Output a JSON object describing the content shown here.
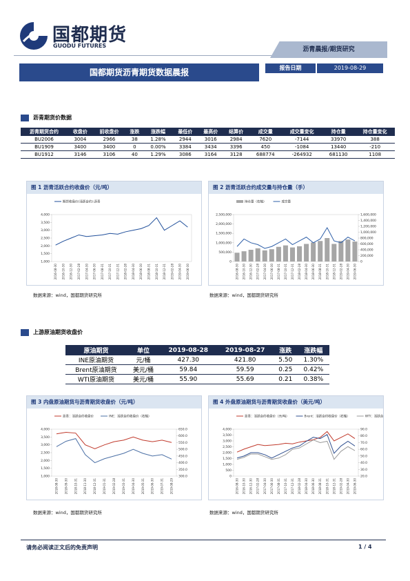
{
  "header": {
    "logo": "国都期货",
    "logo_en": "GUODU FUTURES",
    "tag": "沥青晨报/期货研究",
    "title": "国都期货沥青期货数据晨报",
    "date_label": "报告日期",
    "date": "2019-08-29"
  },
  "tables": [
    {
      "section": "沥青期货价数据",
      "headers": [
        "沥青期货合约",
        "收盘价",
        "前收盘价",
        "涨跌",
        "涨跌幅",
        "最低价",
        "最高价",
        "结算价",
        "成交量",
        "成交量变化",
        "持仓量",
        "持仓量变化"
      ],
      "rows": [
        [
          "BU2006",
          "3004",
          "2966",
          "38",
          "1.28%",
          "2944",
          "3016",
          "2984",
          "7620",
          "-7144",
          "33970",
          "388"
        ],
        [
          "BU1909",
          "3400",
          "3400",
          "0",
          "0.00%",
          "3384",
          "3434",
          "3396",
          "450",
          "-1084",
          "13440",
          "-210"
        ],
        [
          "BU1912",
          "3146",
          "3106",
          "40",
          "1.29%",
          "3086",
          "3164",
          "3128",
          "688774",
          "-264932",
          "681130",
          "1108"
        ]
      ]
    },
    {
      "section": "上游原油期货收盘价",
      "headers": [
        "原油期货",
        "单位",
        "2019-08-28",
        "2019-08-27",
        "涨跌",
        "涨跌幅"
      ],
      "rows": [
        [
          "INE原油期货",
          "元/桶",
          "427.30",
          "421.80",
          "5.50",
          "1.30%"
        ],
        [
          "Brent原油期货",
          "美元/桶",
          "59.84",
          "59.59",
          "0.25",
          "0.42%"
        ],
        [
          "WTI原油期货",
          "美元/桶",
          "55.90",
          "55.69",
          "0.21",
          "0.38%"
        ]
      ]
    }
  ],
  "chart_data": [
    {
      "type": "line",
      "title": "图 1  沥青活跃合约收盘价（元/吨）",
      "source": "数据来源：wind，国都期货研究所",
      "categories": [
        "2016-08-30",
        "2016-10-30",
        "2016-12-30",
        "2017-02-28",
        "2017-04-30",
        "2017-06-30",
        "2017-08-31",
        "2017-10-31",
        "2017-12-31",
        "2018-02-28",
        "2018-04-30",
        "2018-06-30",
        "2018-08-31",
        "2018-10-31",
        "2018-12-31",
        "2019-02-28",
        "2019-04-30",
        "2019-06-30"
      ],
      "series": [
        {
          "name": "期货收盘价(活跃合约):沥青",
          "color": "#1f4e9a",
          "values": [
            2050,
            2300,
            2500,
            2700,
            2600,
            2650,
            2700,
            2800,
            2750,
            2900,
            3000,
            3100,
            3300,
            3800,
            3000,
            3300,
            3600,
            3200
          ]
        }
      ],
      "ylim": [
        1000,
        4000
      ],
      "yticks": [
        {
          "value": 1000,
          "label": "1,000"
        },
        {
          "value": 1500,
          "label": "1,500"
        },
        {
          "value": 2000,
          "label": "2,000"
        },
        {
          "value": 2500,
          "label": "2,500"
        },
        {
          "value": 3000,
          "label": "3,000"
        },
        {
          "value": 3500,
          "label": "3,500"
        },
        {
          "value": 4000,
          "label": "4,000"
        }
      ]
    },
    {
      "type": "combo",
      "title": "图 2  沥青活跃合约成交量与持仓量（手）",
      "source": "数据来源：wind，国都期货研究所",
      "categories": [
        "2016-08-30",
        "2016-10-30",
        "2016-12-30",
        "2017-02-28",
        "2017-04-30",
        "2017-06-30",
        "2017-08-31",
        "2017-10-31",
        "2017-12-31",
        "2018-02-28",
        "2018-04-30",
        "2018-06-30",
        "2018-08-31",
        "2018-10-31",
        "2018-12-31",
        "2019-02-28",
        "2019-04-30",
        "2019-06-30"
      ],
      "series": [
        {
          "name": "持仓量（右轴）",
          "type": "bar",
          "axis": "y2",
          "color": "#a6a6a6",
          "values": [
            300000,
            350000,
            400000,
            450000,
            380000,
            420000,
            500000,
            550000,
            480000,
            520000,
            600000,
            650000,
            700000,
            800000,
            600000,
            700000,
            750000,
            680000
          ]
        },
        {
          "name": "成交量",
          "type": "line",
          "color": "#2e5fa8",
          "values": [
            800000,
            1200000,
            1000000,
            900000,
            700000,
            800000,
            1000000,
            1200000,
            900000,
            1100000,
            1300000,
            1000000,
            1200000,
            1800000,
            1100000,
            1000000,
            1300000,
            1100000
          ]
        }
      ],
      "ylim": [
        0,
        2500000
      ],
      "yticks": [
        0,
        {
          "value": 500000,
          "label": "500,000"
        },
        {
          "value": 1000000,
          "label": "1,000,000"
        },
        {
          "value": 1500000,
          "label": "1,500,000"
        },
        {
          "value": 2000000,
          "label": "2,000,000"
        },
        {
          "value": 2500000,
          "label": "2,500,000"
        }
      ],
      "y2lim": [
        0,
        1600000
      ],
      "y2ticks": [
        0,
        {
          "value": 200000,
          "label": "200,000"
        },
        {
          "value": 400000,
          "label": "400,000"
        },
        {
          "value": 600000,
          "label": "600,000"
        },
        {
          "value": 800000,
          "label": "800,000"
        },
        {
          "value": 1000000,
          "label": "1,000,000"
        },
        {
          "value": 1200000,
          "label": "1,200,000"
        },
        {
          "value": 1400000,
          "label": "1,400,000"
        },
        {
          "value": 1600000,
          "label": "1,600,000"
        }
      ]
    },
    {
      "type": "line",
      "title": "图 3  内盘原油期货与沥青期货收盘价（元/吨）",
      "source": "数据来源：wind，国都期货研究所",
      "categories": [
        "2018-08-30",
        "2018-09-30",
        "2018-10-31",
        "2018-11-30",
        "2018-12-31",
        "2019-01-31",
        "2019-02-28",
        "2019-03-31",
        "2019-04-30",
        "2019-05-31",
        "2019-06-30",
        "2019-07-31",
        "2019-08-29"
      ],
      "series": [
        {
          "name": "沥青：活跃合约收盘价",
          "color": "#c0392b",
          "values": [
            3700,
            3800,
            3750,
            3000,
            2750,
            3000,
            3200,
            3300,
            3500,
            3300,
            3200,
            3300,
            3150
          ]
        },
        {
          "name": "INE：活跃合约收盘价（右轴）",
          "axis": "y2",
          "color": "#4a6fa5",
          "values": [
            520,
            560,
            580,
            460,
            400,
            430,
            450,
            470,
            500,
            470,
            450,
            460,
            427.3
          ]
        }
      ],
      "ylim": [
        1000,
        4000
      ],
      "yticks": [
        {
          "value": 1000,
          "label": "1,000"
        },
        {
          "value": 1500,
          "label": "1,500"
        },
        {
          "value": 2000,
          "label": "2,000"
        },
        {
          "value": 2500,
          "label": "2,500"
        },
        {
          "value": 3000,
          "label": "3,000"
        },
        {
          "value": 3500,
          "label": "3,500"
        },
        {
          "value": 4000,
          "label": "4,000"
        }
      ],
      "y2lim": [
        300,
        650
      ],
      "y2ticks": [
        {
          "value": 300,
          "label": "300.0"
        },
        {
          "value": 350,
          "label": "350.0"
        },
        {
          "value": 400,
          "label": "400.0"
        },
        {
          "value": 450,
          "label": "450.0"
        },
        {
          "value": 500,
          "label": "500.0"
        },
        {
          "value": 550,
          "label": "550.0"
        },
        {
          "value": 600,
          "label": "600.0"
        },
        {
          "value": 650,
          "label": "650.0"
        }
      ]
    },
    {
      "type": "line",
      "title": "图 4  外盘原油期货与沥青期货收盘价（美元/吨）",
      "source": "数据来源：wind，国都期货研究所",
      "categories": [
        "2016-08-30",
        "2016-10-30",
        "2016-12-30",
        "2017-02-28",
        "2017-04-30",
        "2017-06-30",
        "2017-08-31",
        "2017-10-31",
        "2017-12-31",
        "2018-02-28",
        "2018-04-30",
        "2018-06-30",
        "2018-08-31",
        "2018-10-31",
        "2018-12-31",
        "2019-02-28",
        "2019-04-30",
        "2019-06-30"
      ],
      "series": [
        {
          "name": "沥青：活跃合约收盘价（元/吨）",
          "color": "#c0392b",
          "values": [
            2050,
            2300,
            2500,
            2700,
            2600,
            2650,
            2700,
            2800,
            2750,
            2900,
            3000,
            3100,
            3300,
            3800,
            3000,
            3300,
            3600,
            3200
          ]
        },
        {
          "name": "Brent：活跃合约收盘价（右轴）",
          "axis": "y2",
          "color": "#2f4f8f",
          "values": [
            47,
            50,
            55,
            55,
            52,
            47,
            52,
            57,
            62,
            65,
            72,
            78,
            76,
            82,
            54,
            65,
            72,
            65
          ]
        },
        {
          "name": "WTI：活跃合约收盘价（右轴）",
          "axis": "y2",
          "color": "#999999",
          "values": [
            45,
            48,
            53,
            53,
            49,
            45,
            47,
            52,
            60,
            62,
            68,
            74,
            70,
            72,
            45,
            57,
            64,
            58
          ]
        }
      ],
      "ylim": [
        0,
        4000
      ],
      "yticks": [
        0,
        {
          "value": 500,
          "label": "500"
        },
        {
          "value": 1000,
          "label": "1,000"
        },
        {
          "value": 1500,
          "label": "1,500"
        },
        {
          "value": 2000,
          "label": "2,000"
        },
        {
          "value": 2500,
          "label": "2,500"
        },
        {
          "value": 3000,
          "label": "3,000"
        },
        {
          "value": 3500,
          "label": "3,500"
        },
        {
          "value": 4000,
          "label": "4,000"
        }
      ],
      "y2lim": [
        20,
        90
      ],
      "y2ticks": [
        {
          "value": 20,
          "label": "20.0"
        },
        {
          "value": 30,
          "label": "30.0"
        },
        {
          "value": 40,
          "label": "40.0"
        },
        {
          "value": 50,
          "label": "50.0"
        },
        {
          "value": 60,
          "label": "60.0"
        },
        {
          "value": 70,
          "label": "70.0"
        },
        {
          "value": 80,
          "label": "80.0"
        },
        {
          "value": 90,
          "label": "90.0"
        }
      ]
    }
  ],
  "footer": {
    "disclaimer": "请务必阅读正文后的免责声明",
    "page": "1 / 4"
  }
}
